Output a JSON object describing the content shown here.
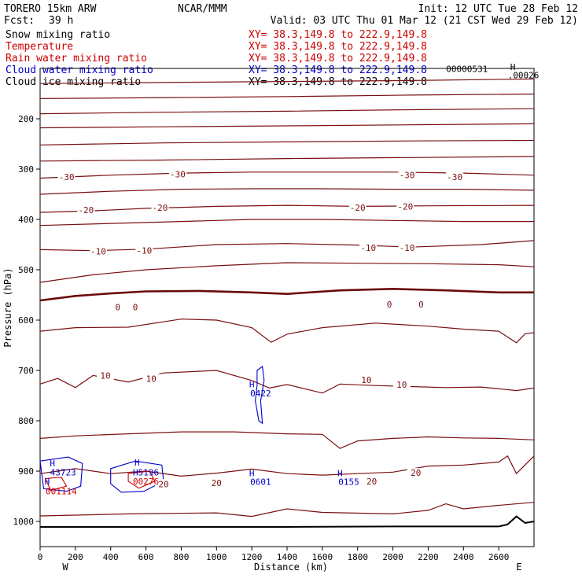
{
  "header": {
    "model": "TORERO  15km ARW",
    "org": "NCAR/MMM",
    "init": "Init: 12 UTC Tue 28 Feb 12",
    "fcst_label": "Fcst:",
    "fcst_value": "39 h",
    "valid": "Valid: 03 UTC Thu 01 Mar 12 (21 CST Wed 29 Feb 12)"
  },
  "fields": [
    {
      "label": "Snow mixing ratio",
      "xy": "XY=  38.3,149.8 to 222.9,149.8",
      "color": "#000000",
      "xy_color": "#cc0000"
    },
    {
      "label": "Temperature",
      "xy": "XY=  38.3,149.8 to 222.9,149.8",
      "color": "#cc0000",
      "xy_color": "#cc0000"
    },
    {
      "label": "Rain water mixing ratio",
      "xy": "XY=  38.3,149.8 to 222.9,149.8",
      "color": "#cc0000",
      "xy_color": "#cc0000"
    },
    {
      "label": "Cloud water mixing ratio",
      "xy": "XY=  38.3,149.8 to 222.9,149.8",
      "color": "#0000cc",
      "xy_color": "#0000cc"
    },
    {
      "label": "Cloud ice mixing ratio",
      "xy": "XY=  38.3,149.8 to 222.9,149.8",
      "color": "#000000",
      "xy_color": "#000000"
    }
  ],
  "chart_data": {
    "type": "line",
    "xlabel": "Distance (km)",
    "ylabel": "Pressure (hPa)",
    "xlim": [
      0,
      2800
    ],
    "ylim": [
      1050,
      100
    ],
    "x_ticks": [
      0,
      200,
      400,
      600,
      800,
      1000,
      1200,
      1400,
      1600,
      1800,
      2000,
      2200,
      2400,
      2600
    ],
    "y_ticks": [
      200,
      300,
      400,
      500,
      600,
      700,
      800,
      900,
      1000
    ],
    "x_end_labels": {
      "left": "W",
      "right": "E"
    },
    "temperature_labels": [
      {
        "text": "-30",
        "x": 150,
        "p": 317
      },
      {
        "text": "-30",
        "x": 780,
        "p": 312
      },
      {
        "text": "-30",
        "x": 2080,
        "p": 313
      },
      {
        "text": "-30",
        "x": 2350,
        "p": 317
      },
      {
        "text": "-20",
        "x": 260,
        "p": 383
      },
      {
        "text": "-20",
        "x": 680,
        "p": 378
      },
      {
        "text": "-20",
        "x": 1800,
        "p": 378
      },
      {
        "text": "-20",
        "x": 2070,
        "p": 376
      },
      {
        "text": "-10",
        "x": 330,
        "p": 465
      },
      {
        "text": "-10",
        "x": 590,
        "p": 463
      },
      {
        "text": "-10",
        "x": 1860,
        "p": 458
      },
      {
        "text": "-10",
        "x": 2080,
        "p": 458
      },
      {
        "text": "0",
        "x": 440,
        "p": 576
      },
      {
        "text": "0",
        "x": 540,
        "p": 576
      },
      {
        "text": "0",
        "x": 1980,
        "p": 570
      },
      {
        "text": "0",
        "x": 2160,
        "p": 570
      },
      {
        "text": "10",
        "x": 370,
        "p": 712
      },
      {
        "text": "10",
        "x": 630,
        "p": 718
      },
      {
        "text": "10",
        "x": 1850,
        "p": 720
      },
      {
        "text": "10",
        "x": 2050,
        "p": 730
      },
      {
        "text": "20",
        "x": 700,
        "p": 927
      },
      {
        "text": "20",
        "x": 1000,
        "p": 925
      },
      {
        "text": "20",
        "x": 1880,
        "p": 922
      },
      {
        "text": "20",
        "x": 2130,
        "p": 905
      }
    ],
    "extrema_labels": [
      {
        "text": "H",
        "x": 1200,
        "p": 727,
        "color": "#0000cc"
      },
      {
        "text": "0422",
        "x": 1250,
        "p": 745,
        "color": "#0000cc"
      },
      {
        "text": "H",
        "x": 70,
        "p": 884,
        "color": "#0000cc"
      },
      {
        "text": "43723",
        "x": 130,
        "p": 902,
        "color": "#0000cc"
      },
      {
        "text": "H",
        "x": 550,
        "p": 883,
        "color": "#0000cc"
      },
      {
        "text": "H5196",
        "x": 600,
        "p": 902,
        "color": "#0000cc"
      },
      {
        "text": "00276",
        "x": 600,
        "p": 920,
        "color": "#cc0000"
      },
      {
        "text": "H",
        "x": 1200,
        "p": 904,
        "color": "#0000cc"
      },
      {
        "text": "0601",
        "x": 1250,
        "p": 921,
        "color": "#0000cc"
      },
      {
        "text": "H",
        "x": 1700,
        "p": 904,
        "color": "#0000cc"
      },
      {
        "text": "0155",
        "x": 1750,
        "p": 921,
        "color": "#0000cc"
      },
      {
        "text": "H",
        "x": 40,
        "p": 920,
        "color": "#0000cc"
      },
      {
        "text": "001114",
        "x": 120,
        "p": 940,
        "color": "#cc0000"
      },
      {
        "text": "H",
        "x": 2680,
        "p": 97,
        "color": "#000000"
      },
      {
        "text": "00000531",
        "x": 2420,
        "p": 101,
        "color": "#000000"
      },
      {
        "text": ".00026",
        "x": 2740,
        "p": 113,
        "color": "#000000"
      }
    ],
    "isotherms": [
      {
        "name": "iso-1",
        "points": [
          [
            0,
            130
          ],
          [
            700,
            128
          ],
          [
            1400,
            126
          ],
          [
            2100,
            124
          ],
          [
            2800,
            121
          ]
        ]
      },
      {
        "name": "iso-2",
        "points": [
          [
            0,
            160
          ],
          [
            700,
            158
          ],
          [
            1400,
            156
          ],
          [
            2100,
            153
          ],
          [
            2800,
            151
          ]
        ]
      },
      {
        "name": "iso-3",
        "points": [
          [
            0,
            190
          ],
          [
            700,
            187
          ],
          [
            1400,
            185
          ],
          [
            2100,
            182
          ],
          [
            2800,
            180
          ]
        ]
      },
      {
        "name": "iso-4",
        "points": [
          [
            0,
            218
          ],
          [
            700,
            216
          ],
          [
            1400,
            214
          ],
          [
            2100,
            212
          ],
          [
            2800,
            210
          ]
        ]
      },
      {
        "name": "iso-5",
        "points": [
          [
            0,
            252
          ],
          [
            700,
            248
          ],
          [
            1400,
            246
          ],
          [
            2100,
            244
          ],
          [
            2800,
            243
          ]
        ]
      },
      {
        "name": "iso-6",
        "points": [
          [
            0,
            284
          ],
          [
            700,
            282
          ],
          [
            1400,
            279
          ],
          [
            2100,
            277
          ],
          [
            2800,
            275
          ]
        ]
      },
      {
        "name": "iso-7",
        "points": [
          [
            0,
            318
          ],
          [
            400,
            312
          ],
          [
            800,
            308
          ],
          [
            1200,
            306
          ],
          [
            1600,
            306
          ],
          [
            2000,
            306
          ],
          [
            2400,
            308
          ],
          [
            2800,
            312
          ]
        ]
      },
      {
        "name": "iso-8",
        "points": [
          [
            0,
            350
          ],
          [
            400,
            344
          ],
          [
            800,
            340
          ],
          [
            1200,
            339
          ],
          [
            1600,
            339
          ],
          [
            2000,
            340
          ],
          [
            2400,
            340
          ],
          [
            2800,
            342
          ]
        ]
      },
      {
        "name": "iso-9",
        "points": [
          [
            0,
            386
          ],
          [
            300,
            383
          ],
          [
            600,
            378
          ],
          [
            1000,
            374
          ],
          [
            1400,
            372
          ],
          [
            1800,
            374
          ],
          [
            2200,
            373
          ],
          [
            2800,
            372
          ]
        ]
      },
      {
        "name": "iso-10",
        "points": [
          [
            0,
            412
          ],
          [
            400,
            408
          ],
          [
            800,
            404
          ],
          [
            1200,
            400
          ],
          [
            1600,
            400
          ],
          [
            2000,
            402
          ],
          [
            2400,
            404
          ],
          [
            2800,
            404
          ]
        ]
      },
      {
        "name": "iso-11",
        "points": [
          [
            0,
            460
          ],
          [
            300,
            462
          ],
          [
            600,
            459
          ],
          [
            1000,
            450
          ],
          [
            1400,
            448
          ],
          [
            1800,
            451
          ],
          [
            2100,
            455
          ],
          [
            2500,
            450
          ],
          [
            2800,
            442
          ]
        ]
      },
      {
        "name": "iso-12",
        "points": [
          [
            0,
            525
          ],
          [
            300,
            510
          ],
          [
            600,
            500
          ],
          [
            1000,
            492
          ],
          [
            1400,
            486
          ],
          [
            1800,
            487
          ],
          [
            2200,
            488
          ],
          [
            2600,
            490
          ],
          [
            2800,
            494
          ]
        ]
      },
      {
        "name": "iso-13",
        "points": [
          [
            0,
            622
          ],
          [
            200,
            615
          ],
          [
            500,
            614
          ],
          [
            800,
            598
          ],
          [
            1000,
            600
          ],
          [
            1200,
            615
          ],
          [
            1310,
            644
          ],
          [
            1400,
            628
          ],
          [
            1600,
            615
          ],
          [
            1900,
            606
          ],
          [
            2200,
            612
          ],
          [
            2400,
            618
          ],
          [
            2600,
            622
          ],
          [
            2700,
            645
          ],
          [
            2750,
            627
          ],
          [
            2800,
            625
          ]
        ]
      },
      {
        "name": "iso-14",
        "points": [
          [
            0,
            727
          ],
          [
            100,
            716
          ],
          [
            200,
            734
          ],
          [
            300,
            710
          ],
          [
            500,
            723
          ],
          [
            700,
            705
          ],
          [
            1000,
            700
          ],
          [
            1200,
            720
          ],
          [
            1300,
            735
          ],
          [
            1400,
            728
          ],
          [
            1600,
            745
          ],
          [
            1700,
            727
          ],
          [
            1900,
            730
          ],
          [
            2100,
            732
          ],
          [
            2300,
            734
          ],
          [
            2500,
            733
          ],
          [
            2700,
            740
          ],
          [
            2800,
            735
          ]
        ]
      },
      {
        "name": "iso-15",
        "points": [
          [
            0,
            835
          ],
          [
            200,
            830
          ],
          [
            500,
            826
          ],
          [
            800,
            822
          ],
          [
            1100,
            822
          ],
          [
            1400,
            826
          ],
          [
            1600,
            827
          ],
          [
            1700,
            855
          ],
          [
            1800,
            840
          ],
          [
            2000,
            835
          ],
          [
            2200,
            832
          ],
          [
            2400,
            834
          ],
          [
            2600,
            835
          ],
          [
            2800,
            838
          ]
        ]
      },
      {
        "name": "iso-16",
        "points": [
          [
            0,
            905
          ],
          [
            100,
            900
          ],
          [
            200,
            895
          ],
          [
            400,
            905
          ],
          [
            600,
            900
          ],
          [
            800,
            910
          ],
          [
            1000,
            904
          ],
          [
            1200,
            896
          ],
          [
            1400,
            905
          ],
          [
            1600,
            908
          ],
          [
            1800,
            905
          ],
          [
            2000,
            902
          ],
          [
            2200,
            890
          ],
          [
            2400,
            888
          ],
          [
            2600,
            882
          ],
          [
            2650,
            870
          ],
          [
            2700,
            905
          ],
          [
            2800,
            870
          ]
        ]
      },
      {
        "name": "iso-17",
        "points": [
          [
            0,
            989
          ],
          [
            500,
            985
          ],
          [
            1000,
            983
          ],
          [
            1200,
            990
          ],
          [
            1400,
            975
          ],
          [
            1600,
            982
          ],
          [
            2000,
            985
          ],
          [
            2200,
            978
          ],
          [
            2300,
            965
          ],
          [
            2400,
            975
          ],
          [
            2600,
            968
          ],
          [
            2800,
            962
          ]
        ]
      }
    ],
    "freezing_level": {
      "name": "zero-isotherm",
      "points": [
        [
          0,
          561
        ],
        [
          200,
          552
        ],
        [
          400,
          547
        ],
        [
          600,
          543
        ],
        [
          900,
          542
        ],
        [
          1200,
          545
        ],
        [
          1400,
          548
        ],
        [
          1700,
          541
        ],
        [
          2000,
          538
        ],
        [
          2300,
          541
        ],
        [
          2600,
          545
        ],
        [
          2800,
          545
        ]
      ]
    },
    "terrain": {
      "name": "surface-terrain",
      "points": [
        [
          0,
          1011
        ],
        [
          1400,
          1011
        ],
        [
          2000,
          1010
        ],
        [
          2600,
          1010
        ],
        [
          2650,
          1006
        ],
        [
          2700,
          990
        ],
        [
          2750,
          1003
        ],
        [
          2800,
          1000
        ]
      ]
    },
    "cloud_contours": [
      {
        "name": "cloud-water-mid",
        "color": "#0000cc",
        "points": [
          [
            1230,
            700
          ],
          [
            1260,
            692
          ],
          [
            1270,
            720
          ],
          [
            1250,
            760
          ],
          [
            1260,
            805
          ],
          [
            1240,
            800
          ],
          [
            1220,
            760
          ],
          [
            1230,
            730
          ],
          [
            1230,
            700
          ]
        ]
      },
      {
        "name": "cloud-water-west",
        "color": "#0000cc",
        "points": [
          [
            0,
            880
          ],
          [
            160,
            872
          ],
          [
            240,
            885
          ],
          [
            230,
            930
          ],
          [
            150,
            940
          ],
          [
            20,
            935
          ],
          [
            0,
            880
          ]
        ]
      },
      {
        "name": "cloud-water-center",
        "color": "#0000cc",
        "points": [
          [
            400,
            895
          ],
          [
            540,
            880
          ],
          [
            690,
            888
          ],
          [
            700,
            920
          ],
          [
            590,
            940
          ],
          [
            460,
            942
          ],
          [
            400,
            925
          ],
          [
            400,
            895
          ]
        ]
      },
      {
        "name": "rain-west",
        "color": "#cc0000",
        "points": [
          [
            30,
            915
          ],
          [
            120,
            912
          ],
          [
            150,
            930
          ],
          [
            60,
            938
          ],
          [
            30,
            915
          ]
        ]
      },
      {
        "name": "rain-center",
        "color": "#cc0000",
        "points": [
          [
            500,
            905
          ],
          [
            620,
            900
          ],
          [
            650,
            920
          ],
          [
            560,
            934
          ],
          [
            500,
            920
          ],
          [
            500,
            905
          ]
        ]
      }
    ]
  }
}
